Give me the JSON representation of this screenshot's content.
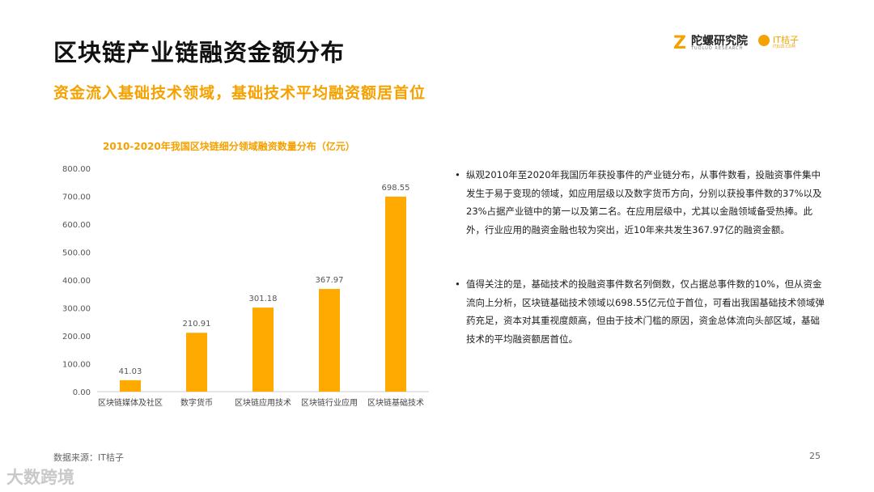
{
  "header": {
    "title": "区块链产业链融资金额分布",
    "subtitle": "资金流入基础技术领域，基础技术平均融资额居首位"
  },
  "logos": {
    "tuoluo_name": "陀螺研究院",
    "tuoluo_sub": "TUOLUO RESEARCH",
    "itjuzi_name": "IT桔子",
    "itjuzi_sub": "ITJUZI.COM"
  },
  "chart_data": {
    "type": "bar",
    "title": "2010-2020年我国区块链细分领域融资数量分布（亿元）",
    "categories": [
      "区块链媒体及社区",
      "数字货币",
      "区块链应用技术",
      "区块链行业应用",
      "区块链基础技术"
    ],
    "values": [
      41.03,
      210.91,
      301.18,
      367.97,
      698.55
    ],
    "value_labels": [
      "41.03",
      "210.91",
      "301.18",
      "367.97",
      "698.55"
    ],
    "y_ticks": [
      "0.00",
      "100.00",
      "200.00",
      "300.00",
      "400.00",
      "500.00",
      "600.00",
      "700.00",
      "800.00"
    ],
    "ylim": [
      0,
      800
    ],
    "bar_color": "#FFAA00",
    "grid": false,
    "xlabel": "",
    "ylabel": ""
  },
  "bullets": [
    "纵观2010年至2020年我国历年获投事件的产业链分布，从事件数看，投融资事件集中发生于易于变现的领域，如应用层级以及数字货币方向，分别以获投事件数的37%以及23%占据产业链中的第一以及第二名。在应用层级中，尤其以金融领域备受热捧。此外，行业应用的融资金融也较为突出，近10年来共发生367.97亿的融资金额。",
    "值得关注的是，基础技术的投融资事件数名列倒数，仅占据总事件数的10%，但从资金流向上分析，区块链基础技术领域以698.55亿元位于首位，可看出我国基础技术领域弹药充足，资本对其重视度颇高，但由于技术门槛的原因，资金总体流向头部区域，基础技术的平均融资额居首位。"
  ],
  "footer": {
    "source": "数据来源：IT桔子",
    "page": "25",
    "watermark": "大数跨境"
  },
  "colors": {
    "accent": "#F5A100"
  }
}
